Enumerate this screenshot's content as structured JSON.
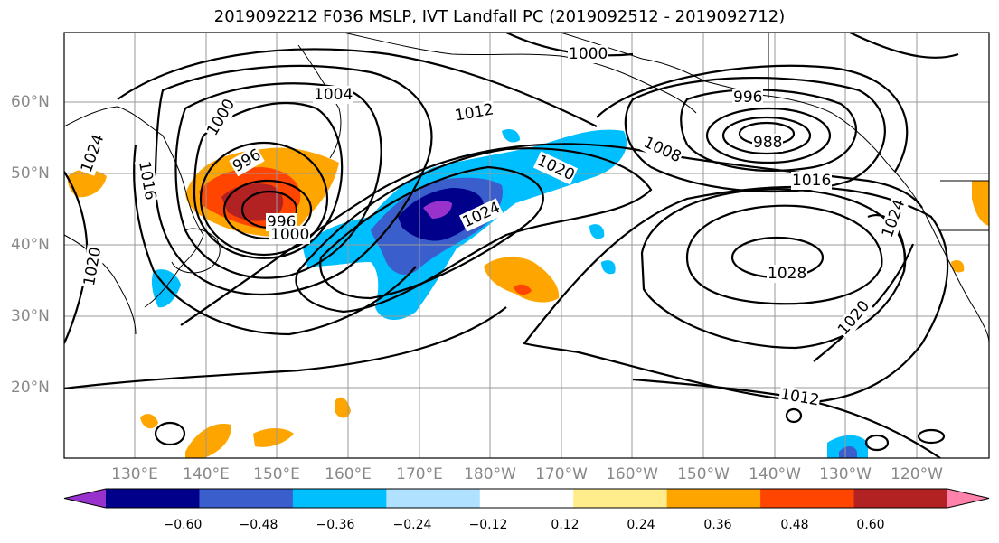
{
  "title": "2019092212 F036 MSLP, IVT Landfall PC (2019092512 - 2019092712)",
  "lat_labels": [
    "60°N",
    "50°N",
    "40°N",
    "30°N",
    "20°N"
  ],
  "lon_labels": [
    "130°E",
    "140°E",
    "150°E",
    "160°E",
    "170°E",
    "180°W",
    "170°W",
    "160°W",
    "150°W",
    "140°W",
    "130°W",
    "120°W"
  ],
  "isobar_labels": [
    "1000",
    "1004",
    "1012",
    "1008",
    "996",
    "988",
    "1016",
    "1020",
    "1024",
    "1028",
    "1012",
    "1020",
    "1024",
    "1016",
    "1024",
    "1000",
    "996",
    "996",
    "1000",
    "1020"
  ],
  "colorbar": {
    "ticks": [
      "−0.60",
      "−0.48",
      "−0.36",
      "−0.24",
      "−0.12",
      "0.12",
      "0.24",
      "0.36",
      "0.48",
      "0.60"
    ],
    "colors": [
      "#9932cc",
      "#00008b",
      "#3a5fcd",
      "#00bfff",
      "#b0e2ff",
      "#ffffff",
      "#ffec8b",
      "#ffa500",
      "#ff4500",
      "#b22222",
      "#ff82ab"
    ]
  }
}
